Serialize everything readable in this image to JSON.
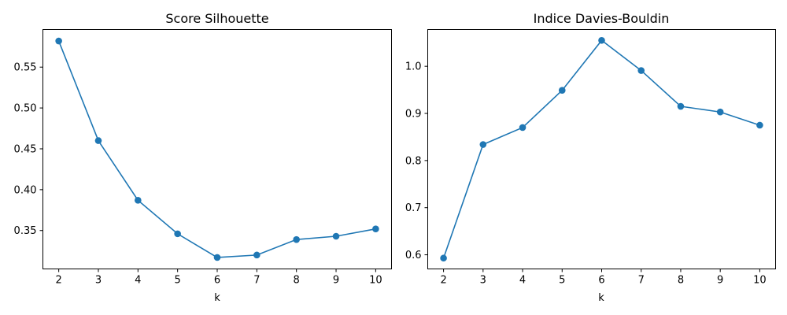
{
  "colors": {
    "series": "#1f77b4"
  },
  "chart_data": [
    {
      "type": "line",
      "title": "Score Silhouette",
      "xlabel": "k",
      "ylabel": "",
      "x": [
        2,
        3,
        4,
        5,
        6,
        7,
        8,
        9,
        10
      ],
      "series": [
        {
          "values": [
            0.582,
            0.46,
            0.387,
            0.346,
            0.317,
            0.32,
            0.339,
            0.343,
            0.352
          ]
        }
      ],
      "xlim": [
        1.6,
        10.4
      ],
      "ylim": [
        0.303,
        0.596
      ],
      "xticks": [
        2,
        3,
        4,
        5,
        6,
        7,
        8,
        9,
        10
      ],
      "xtick_labels": [
        "2",
        "3",
        "4",
        "5",
        "6",
        "7",
        "8",
        "9",
        "10"
      ],
      "yticks": [
        0.35,
        0.4,
        0.45,
        0.5,
        0.55
      ],
      "ytick_labels": [
        "0.35",
        "0.40",
        "0.45",
        "0.50",
        "0.55"
      ],
      "grid": false,
      "marker": "circle"
    },
    {
      "type": "line",
      "title": "Indice Davies-Bouldin",
      "xlabel": "k",
      "ylabel": "",
      "x": [
        2,
        3,
        4,
        5,
        6,
        7,
        8,
        9,
        10
      ],
      "series": [
        {
          "values": [
            0.593,
            0.834,
            0.87,
            0.949,
            1.055,
            0.991,
            0.915,
            0.903,
            0.875
          ]
        }
      ],
      "xlim": [
        1.6,
        10.4
      ],
      "ylim": [
        0.57,
        1.078
      ],
      "xticks": [
        2,
        3,
        4,
        5,
        6,
        7,
        8,
        9,
        10
      ],
      "xtick_labels": [
        "2",
        "3",
        "4",
        "5",
        "6",
        "7",
        "8",
        "9",
        "10"
      ],
      "yticks": [
        0.6,
        0.7,
        0.8,
        0.9,
        1.0
      ],
      "ytick_labels": [
        "0.6",
        "0.7",
        "0.8",
        "0.9",
        "1.0"
      ],
      "grid": false,
      "marker": "circle"
    }
  ]
}
